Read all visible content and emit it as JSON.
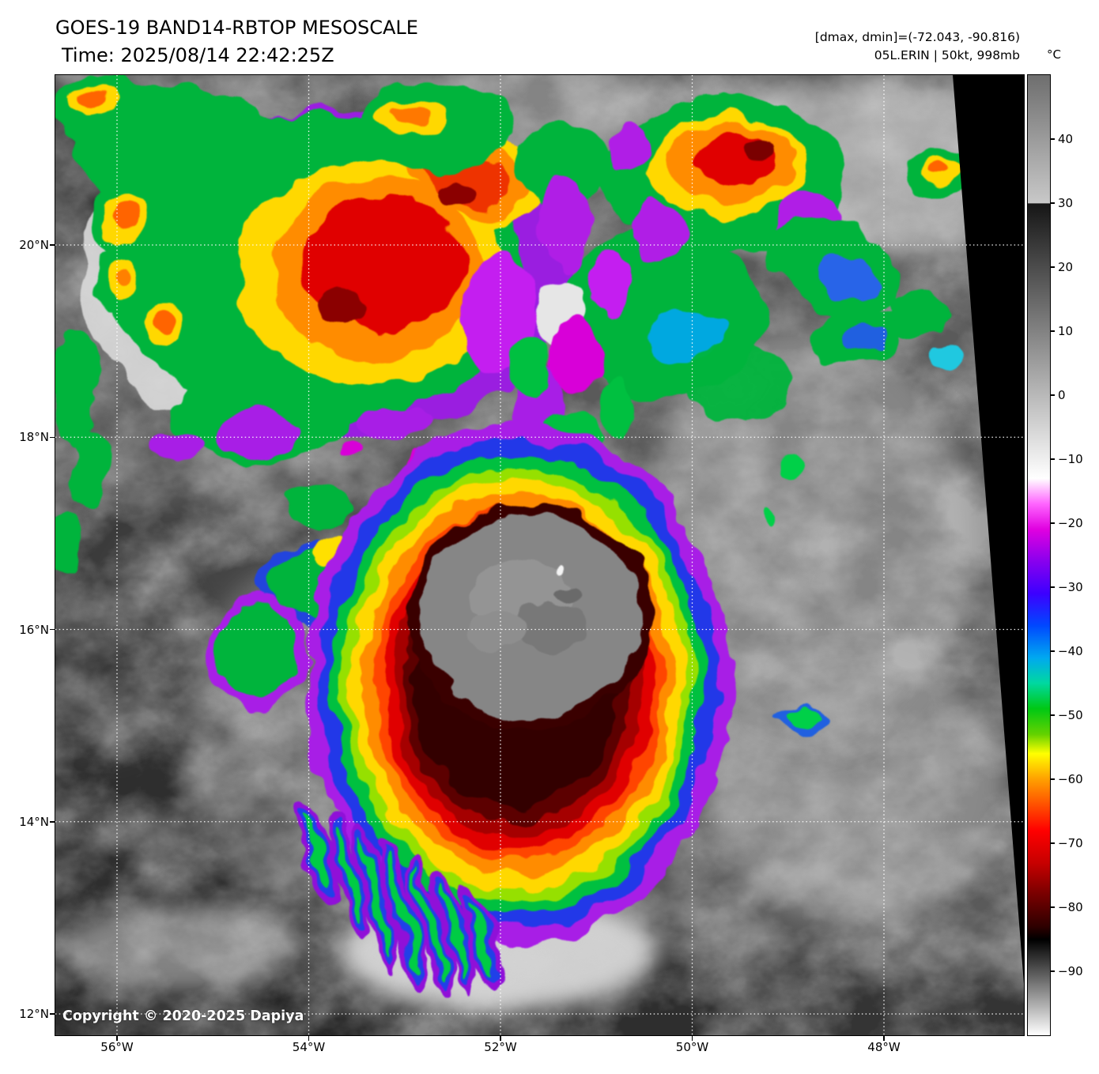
{
  "header": {
    "title": "GOES-19 BAND14-RBTOP MESOSCALE",
    "time": "Time: 2025/08/14 22:42:25Z",
    "dmax_dmin": "[dmax, dmin]=(-72.043, -90.816)",
    "storm_info": "05L.ERIN | 50kt, 998mb"
  },
  "map": {
    "copyright": "Copyright © 2020-2025 Dapiya",
    "lat_ticks": [
      {
        "value": 20,
        "label": "20°N"
      },
      {
        "value": 18,
        "label": "18°N"
      },
      {
        "value": 16,
        "label": "16°N"
      },
      {
        "value": 14,
        "label": "14°N"
      },
      {
        "value": 12,
        "label": "12°N"
      }
    ],
    "lon_ticks": [
      {
        "value": 56,
        "label": "56°W"
      },
      {
        "value": 54,
        "label": "54°W"
      },
      {
        "value": 52,
        "label": "52°W"
      },
      {
        "value": 50,
        "label": "50°W"
      },
      {
        "value": 48,
        "label": "48°W"
      }
    ]
  },
  "colorbar": {
    "unit": "°C",
    "domain": [
      50,
      -100
    ],
    "ticks": [
      40,
      30,
      20,
      10,
      0,
      -10,
      -20,
      -30,
      -40,
      -50,
      -60,
      -70,
      -80,
      -90
    ],
    "stops": [
      {
        "t": 50,
        "color": "#6e6e6e"
      },
      {
        "t": 30,
        "color": "#c8c8c8"
      },
      {
        "t": 29.9,
        "color": "#161616"
      },
      {
        "t": -13,
        "color": "#ffffff"
      },
      {
        "t": -17,
        "color": "#ff64ff"
      },
      {
        "t": -21,
        "color": "#e000e0"
      },
      {
        "t": -26,
        "color": "#8800ee"
      },
      {
        "t": -31,
        "color": "#3c00ff"
      },
      {
        "t": -36,
        "color": "#0048ff"
      },
      {
        "t": -41,
        "color": "#00a8f0"
      },
      {
        "t": -45,
        "color": "#00d8a0"
      },
      {
        "t": -49,
        "color": "#00c814"
      },
      {
        "t": -53,
        "color": "#64d200"
      },
      {
        "t": -56,
        "color": "#ffff00"
      },
      {
        "t": -60,
        "color": "#ffa000"
      },
      {
        "t": -64,
        "color": "#ff5000"
      },
      {
        "t": -68,
        "color": "#ff0000"
      },
      {
        "t": -73,
        "color": "#c80000"
      },
      {
        "t": -78,
        "color": "#780000"
      },
      {
        "t": -83,
        "color": "#2e0000"
      },
      {
        "t": -85,
        "color": "#000000"
      },
      {
        "t": -100,
        "color": "#ffffff"
      }
    ]
  }
}
